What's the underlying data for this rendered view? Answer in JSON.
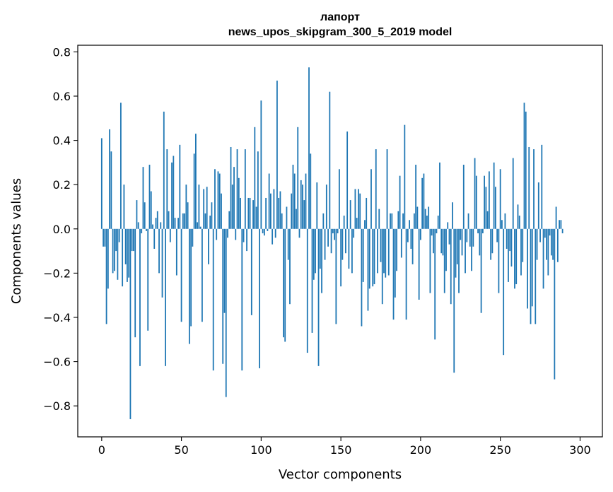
{
  "chart_data": {
    "type": "bar",
    "title": "лапорт",
    "subtitle": "news_upos_skipgram_300_5_2019 model",
    "xlabel": "Vector components",
    "ylabel": "Components values",
    "xlim": [
      -15,
      314
    ],
    "ylim": [
      -0.94,
      0.83
    ],
    "x_ticks": [
      0,
      50,
      100,
      150,
      200,
      250,
      300
    ],
    "x_tick_labels": [
      "0",
      "50",
      "100",
      "150",
      "200",
      "250",
      "300"
    ],
    "y_ticks": [
      -0.8,
      -0.6,
      -0.4,
      -0.2,
      0.0,
      0.2,
      0.4,
      0.6,
      0.8
    ],
    "y_tick_labels": [
      "−0.8",
      "−0.6",
      "−0.4",
      "−0.2",
      "0.0",
      "0.2",
      "0.4",
      "0.6",
      "0.8"
    ],
    "grid": false,
    "color": "#1f77b4",
    "values": [
      0.41,
      -0.08,
      -0.08,
      -0.43,
      -0.27,
      0.45,
      0.35,
      -0.2,
      -0.19,
      -0.1,
      -0.23,
      -0.06,
      0.57,
      -0.26,
      0.2,
      -0.16,
      -0.24,
      -0.22,
      -0.86,
      -0.1,
      -0.1,
      -0.49,
      0.13,
      0.03,
      -0.62,
      -0.02,
      0.28,
      0.12,
      -0.01,
      -0.46,
      0.29,
      0.17,
      0.02,
      -0.09,
      0.05,
      0.08,
      -0.2,
      0.03,
      -0.31,
      0.53,
      -0.62,
      0.36,
      0.08,
      -0.06,
      0.3,
      0.33,
      0.05,
      -0.21,
      0.05,
      0.38,
      -0.42,
      0.07,
      0.07,
      0.2,
      0.12,
      -0.52,
      -0.44,
      -0.08,
      0.34,
      0.43,
      0.03,
      0.2,
      0.01,
      -0.42,
      0.18,
      0.07,
      0.19,
      -0.16,
      0.06,
      0.12,
      -0.64,
      0.27,
      -0.05,
      0.26,
      0.25,
      0.16,
      -0.61,
      -0.38,
      -0.76,
      -0.04,
      0.08,
      0.37,
      0.2,
      0.28,
      -0.05,
      0.36,
      0.23,
      0.14,
      -0.64,
      -0.06,
      0.36,
      -0.1,
      0.14,
      0.14,
      -0.39,
      0.13,
      0.46,
      0.1,
      0.35,
      -0.63,
      0.58,
      -0.02,
      -0.03,
      0.14,
      -0.01,
      0.25,
      0.16,
      -0.07,
      0.18,
      -0.04,
      0.67,
      0.14,
      0.17,
      0.07,
      -0.49,
      -0.51,
      0.1,
      -0.14,
      -0.34,
      0.16,
      0.29,
      0.25,
      0.09,
      0.46,
      -0.04,
      0.22,
      0.2,
      0.13,
      0.25,
      -0.56,
      0.73,
      0.34,
      -0.47,
      -0.23,
      -0.2,
      0.21,
      -0.62,
      -0.18,
      -0.29,
      0.07,
      -0.14,
      0.2,
      -0.08,
      0.62,
      -0.11,
      -0.02,
      -0.05,
      -0.43,
      -0.02,
      0.27,
      -0.26,
      -0.14,
      0.06,
      -0.11,
      0.44,
      -0.18,
      0.13,
      -0.2,
      -0.04,
      0.18,
      0.05,
      0.18,
      0.16,
      -0.44,
      -0.24,
      0.04,
      0.14,
      -0.37,
      -0.27,
      0.27,
      -0.26,
      -0.25,
      0.36,
      -0.2,
      0.09,
      -0.15,
      -0.34,
      -0.2,
      -0.22,
      0.36,
      -0.21,
      0.07,
      0.07,
      -0.41,
      -0.31,
      -0.19,
      0.08,
      0.24,
      -0.13,
      0.07,
      0.47,
      -0.41,
      -0.06,
      0.04,
      -0.09,
      -0.16,
      0.07,
      0.29,
      0.1,
      -0.32,
      -0.05,
      0.23,
      0.25,
      0.09,
      0.06,
      0.1,
      -0.29,
      -0.03,
      -0.11,
      -0.5,
      -0.02,
      0.06,
      0.3,
      -0.11,
      -0.12,
      -0.29,
      -0.19,
      0.03,
      -0.07,
      -0.34,
      0.12,
      -0.65,
      -0.22,
      -0.16,
      -0.29,
      -0.05,
      -0.12,
      0.29,
      -0.2,
      -0.06,
      0.07,
      -0.08,
      -0.19,
      -0.08,
      0.32,
      0.24,
      -0.02,
      -0.12,
      -0.38,
      -0.02,
      0.24,
      0.19,
      0.08,
      0.26,
      -0.14,
      -0.11,
      0.3,
      0.19,
      -0.06,
      -0.29,
      0.27,
      0.04,
      -0.57,
      0.07,
      -0.09,
      -0.24,
      -0.1,
      -0.17,
      0.32,
      -0.27,
      -0.25,
      0.11,
      0.06,
      -0.21,
      -0.15,
      0.57,
      0.53,
      -0.36,
      0.37,
      -0.43,
      -0.35,
      0.36,
      -0.43,
      -0.14,
      0.21,
      -0.06,
      0.38,
      -0.27,
      -0.04,
      -0.14,
      -0.21,
      -0.03,
      -0.12,
      -0.14,
      -0.68,
      0.1,
      -0.15,
      0.04,
      0.04,
      -0.02
    ]
  }
}
